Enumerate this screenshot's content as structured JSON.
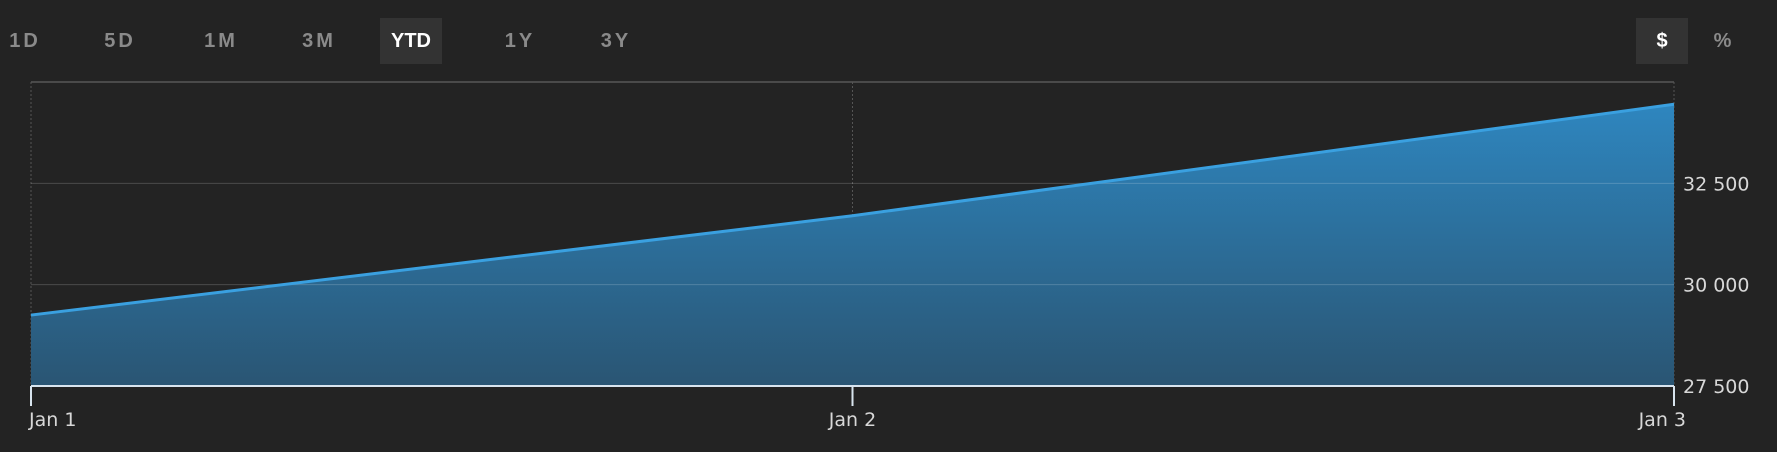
{
  "range_buttons": [
    {
      "label": "1D",
      "active": false
    },
    {
      "label": "5D",
      "active": false
    },
    {
      "label": "1M",
      "active": false
    },
    {
      "label": "3M",
      "active": false
    },
    {
      "label": "YTD",
      "active": true
    },
    {
      "label": "1Y",
      "active": false
    },
    {
      "label": "3Y",
      "active": false
    }
  ],
  "unit_buttons": [
    {
      "label": "$",
      "active": true
    },
    {
      "label": "%",
      "active": false
    }
  ],
  "colors": {
    "line": "#3aa0e0",
    "fill_top": "#2e86bf",
    "fill_bottom": "#2a5573",
    "background": "#232323"
  },
  "chart_data": {
    "type": "area",
    "x": [
      "Jan 1",
      "Jan 2",
      "Jan 3"
    ],
    "values": [
      29250,
      31700,
      34450
    ],
    "yticks": [
      27500,
      30000,
      32500
    ],
    "ytick_labels": [
      "27 500",
      "30 000",
      "32 500"
    ],
    "ylim": [
      27500,
      35000
    ],
    "grid": true,
    "yaxis_side": "right"
  }
}
